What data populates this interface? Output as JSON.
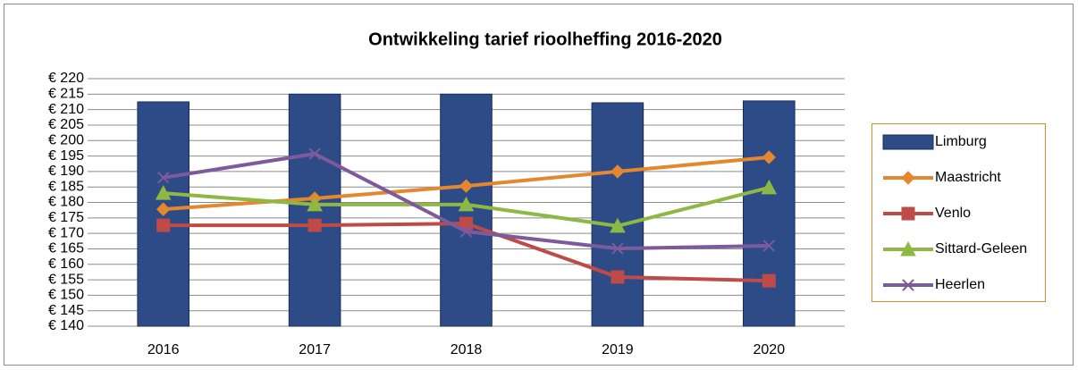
{
  "chart_data": {
    "type": "bar",
    "title": "Ontwikkeling tarief rioolheffing 2016-2020",
    "categories": [
      "2016",
      "2017",
      "2018",
      "2019",
      "2020"
    ],
    "series": [
      {
        "name": "Limburg",
        "type": "bar",
        "color": "#2c4b87",
        "values": [
          212.5,
          215,
          215,
          212.2,
          212.8
        ]
      },
      {
        "name": "Maastricht",
        "type": "line",
        "marker": "diamond",
        "color": "#e3882e",
        "values": [
          177.8,
          181.3,
          185.3,
          190,
          194.6
        ]
      },
      {
        "name": "Venlo",
        "type": "line",
        "marker": "square",
        "color": "#be4b48",
        "values": [
          172.6,
          172.6,
          173.2,
          155.9,
          154.7
        ]
      },
      {
        "name": "Sittard-Geleen",
        "type": "line",
        "marker": "triangle",
        "color": "#8db843",
        "values": [
          183,
          179.3,
          179.3,
          172.4,
          184.8
        ]
      },
      {
        "name": "Heerlen",
        "type": "line",
        "marker": "x",
        "color": "#7d5a9b",
        "values": [
          188,
          195.7,
          170.6,
          165.1,
          166
        ]
      }
    ],
    "ylim": [
      140,
      220
    ],
    "yticks": [
      {
        "value": 140,
        "label": "€ 140"
      },
      {
        "value": 145,
        "label": "€ 145"
      },
      {
        "value": 150,
        "label": "€ 150"
      },
      {
        "value": 155,
        "label": "€ 155"
      },
      {
        "value": 160,
        "label": "€ 160"
      },
      {
        "value": 165,
        "label": "€ 165"
      },
      {
        "value": 170,
        "label": "€ 170"
      },
      {
        "value": 175,
        "label": "€ 175"
      },
      {
        "value": 180,
        "label": "€ 180"
      },
      {
        "value": 185,
        "label": "€ 185"
      },
      {
        "value": 190,
        "label": "€ 190"
      },
      {
        "value": 195,
        "label": "€ 195"
      },
      {
        "value": 200,
        "label": "€ 200"
      },
      {
        "value": 205,
        "label": "€ 205"
      },
      {
        "value": 210,
        "label": "€ 210"
      },
      {
        "value": 215,
        "label": "€ 215"
      },
      {
        "value": 220,
        "label": "€ 220"
      }
    ],
    "grid": true,
    "legend": "right"
  }
}
